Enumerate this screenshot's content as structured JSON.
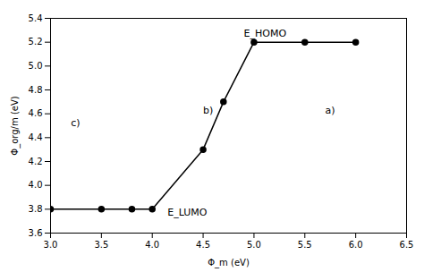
{
  "chart_data": {
    "type": "line",
    "x": [
      3.0,
      3.5,
      3.8,
      4.0,
      4.5,
      4.7,
      5.0,
      5.5,
      6.0
    ],
    "values": [
      3.8,
      3.8,
      3.8,
      3.8,
      4.3,
      4.7,
      5.2,
      5.2,
      5.2
    ],
    "xlabel": "Φ_m (eV)",
    "ylabel": "Φ_org/m (eV)",
    "xlim": [
      3.0,
      6.5
    ],
    "ylim": [
      3.6,
      5.4
    ],
    "xticks": [
      {
        "value": 3.0,
        "label": "3.0"
      },
      3.5,
      {
        "value": 4.0,
        "label": "4.0"
      },
      4.5,
      {
        "value": 5.0,
        "label": "5.0"
      },
      5.5,
      {
        "value": 6.0,
        "label": "6.0"
      },
      6.5
    ],
    "yticks": [
      3.6,
      3.8,
      {
        "value": 4.0,
        "label": "4.0"
      },
      4.2,
      4.4,
      4.6,
      4.8,
      {
        "value": 5.0,
        "label": "5.0"
      },
      5.2,
      5.4
    ],
    "color": "#000000",
    "marker": "circle",
    "line_style": "solid",
    "annotations": [
      {
        "text": "E_HOMO",
        "x": 4.9,
        "y": 5.25
      },
      {
        "text": "E_LUMO",
        "x": 4.15,
        "y": 3.75
      },
      {
        "text": "c)",
        "x": 3.2,
        "y": 4.5
      },
      {
        "text": "b)",
        "x": 4.5,
        "y": 4.6
      },
      {
        "text": "a)",
        "x": 5.7,
        "y": 4.6
      }
    ]
  }
}
